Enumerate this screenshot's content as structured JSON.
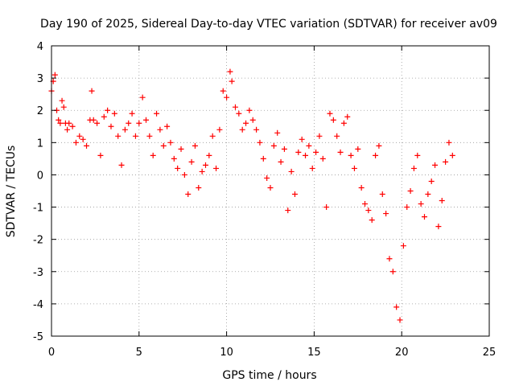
{
  "chart_data": {
    "type": "scatter",
    "title": "Day 190 of 2025, Sidereal Day-to-day VTEC variation (SDTVAR) for receiver av09",
    "xlabel": "GPS time / hours",
    "ylabel": "SDTVAR / TECUs",
    "xlim": [
      0,
      25
    ],
    "ylim": [
      -5,
      4
    ],
    "xticks": [
      "0",
      "5",
      "10",
      "15",
      "20",
      "25"
    ],
    "yticks": [
      "-5",
      "-4",
      "-3",
      "-2",
      "-1",
      "0",
      "1",
      "2",
      "3",
      "4"
    ],
    "grid": true,
    "marker": "+",
    "color": "#ff0000",
    "series": [
      {
        "name": "SDTVAR",
        "x": [
          0.0,
          0.1,
          0.2,
          0.3,
          0.4,
          0.5,
          0.6,
          0.7,
          0.8,
          0.9,
          1.0,
          1.2,
          1.4,
          1.6,
          1.8,
          2.0,
          2.2,
          2.3,
          2.4,
          2.6,
          2.8,
          3.0,
          3.2,
          3.4,
          3.6,
          3.8,
          4.0,
          4.2,
          4.4,
          4.6,
          4.8,
          5.0,
          5.2,
          5.4,
          5.6,
          5.8,
          6.0,
          6.2,
          6.4,
          6.6,
          6.8,
          7.0,
          7.2,
          7.4,
          7.6,
          7.8,
          8.0,
          8.2,
          8.4,
          8.6,
          8.8,
          9.0,
          9.2,
          9.4,
          9.6,
          9.8,
          10.0,
          10.2,
          10.3,
          10.5,
          10.7,
          10.9,
          11.1,
          11.3,
          11.5,
          11.7,
          11.9,
          12.1,
          12.3,
          12.5,
          12.7,
          12.9,
          13.1,
          13.3,
          13.5,
          13.7,
          13.9,
          14.1,
          14.3,
          14.5,
          14.7,
          14.9,
          15.1,
          15.3,
          15.5,
          15.7,
          15.9,
          16.1,
          16.3,
          16.5,
          16.7,
          16.9,
          17.1,
          17.3,
          17.5,
          17.7,
          17.9,
          18.1,
          18.3,
          18.5,
          18.7,
          18.9,
          19.1,
          19.3,
          19.5,
          19.7,
          19.9,
          20.1,
          20.3,
          20.5,
          20.7,
          20.9,
          21.1,
          21.3,
          21.5,
          21.7,
          21.9,
          22.1,
          22.3,
          22.5,
          22.7,
          22.9
        ],
        "y": [
          2.6,
          2.9,
          3.1,
          2.0,
          1.7,
          1.6,
          2.3,
          2.1,
          1.6,
          1.4,
          1.6,
          1.5,
          1.0,
          1.2,
          1.1,
          0.9,
          1.7,
          2.6,
          1.7,
          1.6,
          0.6,
          1.8,
          2.0,
          1.5,
          1.9,
          1.2,
          0.3,
          1.4,
          1.6,
          1.9,
          1.2,
          1.6,
          2.4,
          1.7,
          1.2,
          0.6,
          1.9,
          1.4,
          0.9,
          1.5,
          1.0,
          0.5,
          0.2,
          0.8,
          0.0,
          -0.6,
          0.4,
          0.9,
          -0.4,
          0.1,
          0.3,
          0.6,
          1.2,
          0.2,
          1.4,
          2.6,
          2.4,
          3.2,
          2.9,
          2.1,
          1.9,
          1.4,
          1.6,
          2.0,
          1.7,
          1.4,
          1.0,
          0.5,
          -0.1,
          -0.4,
          0.9,
          1.3,
          0.4,
          0.8,
          -1.1,
          0.1,
          -0.6,
          0.7,
          1.1,
          0.6,
          0.9,
          0.2,
          0.7,
          1.2,
          0.5,
          -1.0,
          1.9,
          1.7,
          1.2,
          0.7,
          1.6,
          1.8,
          0.6,
          0.2,
          0.8,
          -0.4,
          -0.9,
          -1.1,
          -1.4,
          0.6,
          0.9,
          -0.6,
          -1.2,
          -2.6,
          -3.0,
          -4.1,
          -4.5,
          -2.2,
          -1.0,
          -0.5,
          0.2,
          0.6,
          -0.9,
          -1.3,
          -0.6,
          -0.2,
          0.3,
          -1.6,
          -0.8,
          0.4,
          1.0,
          0.6
        ]
      }
    ]
  }
}
